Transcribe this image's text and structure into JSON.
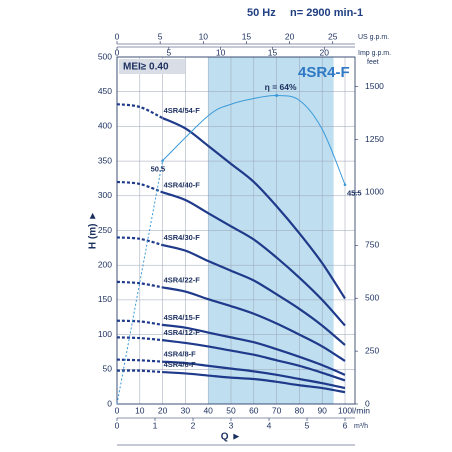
{
  "chart_data": {
    "type": "line",
    "frequency": "50 Hz",
    "speed": "n= 2900 min-1",
    "title": "4SR4-F",
    "mei": "MEI≥ 0.40",
    "ylabel": "H (m) ►",
    "qlabel": "Q ►",
    "xlabel": "l/min",
    "x": [
      0,
      10,
      20,
      30,
      40,
      50,
      60,
      70,
      80,
      90,
      100
    ],
    "xlim": [
      0,
      100
    ],
    "xticks": [
      0,
      10,
      20,
      30,
      40,
      50,
      60,
      70,
      80,
      90,
      100
    ],
    "ylim": [
      0,
      500
    ],
    "yticks": [
      0,
      50,
      100,
      150,
      200,
      250,
      300,
      350,
      400,
      450,
      500
    ],
    "grid": true,
    "dashed_until": 20,
    "series": [
      {
        "name": "4SR4/54-F",
        "color": "#1f3a8a",
        "values": [
          432,
          428,
          412,
          397,
          372,
          346,
          320,
          285,
          246,
          203,
          152
        ]
      },
      {
        "name": "4SR4/40-F",
        "color": "#1f3a8a",
        "values": [
          320,
          317,
          305,
          294,
          275,
          256,
          237,
          211,
          182,
          150,
          113
        ]
      },
      {
        "name": "4SR4/30-F",
        "color": "#1f3a8a",
        "values": [
          240,
          238,
          229,
          221,
          206,
          192,
          178,
          158,
          137,
          113,
          85
        ]
      },
      {
        "name": "4SR4/22-F",
        "color": "#1f3a8a",
        "values": [
          176,
          174,
          168,
          162,
          151,
          141,
          130,
          116,
          100,
          83,
          62
        ]
      },
      {
        "name": "4SR4/15-F",
        "color": "#1f3a8a",
        "values": [
          120,
          119,
          114,
          110,
          103,
          96,
          89,
          79,
          68,
          56,
          42
        ]
      },
      {
        "name": "4SR4/12-F",
        "color": "#1f3a8a",
        "values": [
          96,
          95,
          92,
          88,
          83,
          77,
          71,
          63,
          55,
          45,
          34
        ]
      },
      {
        "name": "4SR4/8-F",
        "color": "#1f3a8a",
        "values": [
          64,
          63,
          61,
          59,
          55,
          51,
          47,
          42,
          36,
          30,
          23
        ]
      },
      {
        "name": "4SR4/6-F",
        "color": "#1f3a8a",
        "values": [
          48,
          48,
          46,
          44,
          41,
          38,
          36,
          32,
          27,
          23,
          17
        ]
      }
    ],
    "efficiency": {
      "label": "η = 64%",
      "color": "#3a9ad9",
      "x": [
        0,
        20,
        40,
        50,
        60,
        70,
        80,
        90,
        100
      ],
      "values": [
        0,
        50.5,
        59.8,
        62.2,
        63.4,
        64,
        63,
        57,
        45.5
      ],
      "value_labels": [
        null,
        "50.5",
        null,
        null,
        null,
        null,
        null,
        null,
        "45.5"
      ]
    },
    "y2lim": [
      0,
      72
    ],
    "recommended_range": [
      40,
      95
    ],
    "range_color": "#a9d3ea",
    "top_axes": [
      {
        "label": "US g.p.m.",
        "lim": [
          0,
          26.42
        ],
        "ticks": [
          0,
          5,
          10,
          15,
          20,
          25
        ]
      },
      {
        "label": "Imp g.p.m.",
        "lim": [
          0,
          22
        ],
        "ticks": [
          0,
          5,
          10,
          15,
          20
        ]
      }
    ],
    "flow_axis": {
      "label": "m³/h",
      "lim": [
        0,
        6
      ],
      "ticks": [
        0,
        1,
        2,
        3,
        4,
        5,
        6
      ]
    },
    "feet_axis": {
      "label": "feet",
      "lim": [
        0,
        1640.4
      ],
      "ticks": [
        0,
        250,
        500,
        750,
        1000,
        1250,
        1500
      ]
    }
  }
}
